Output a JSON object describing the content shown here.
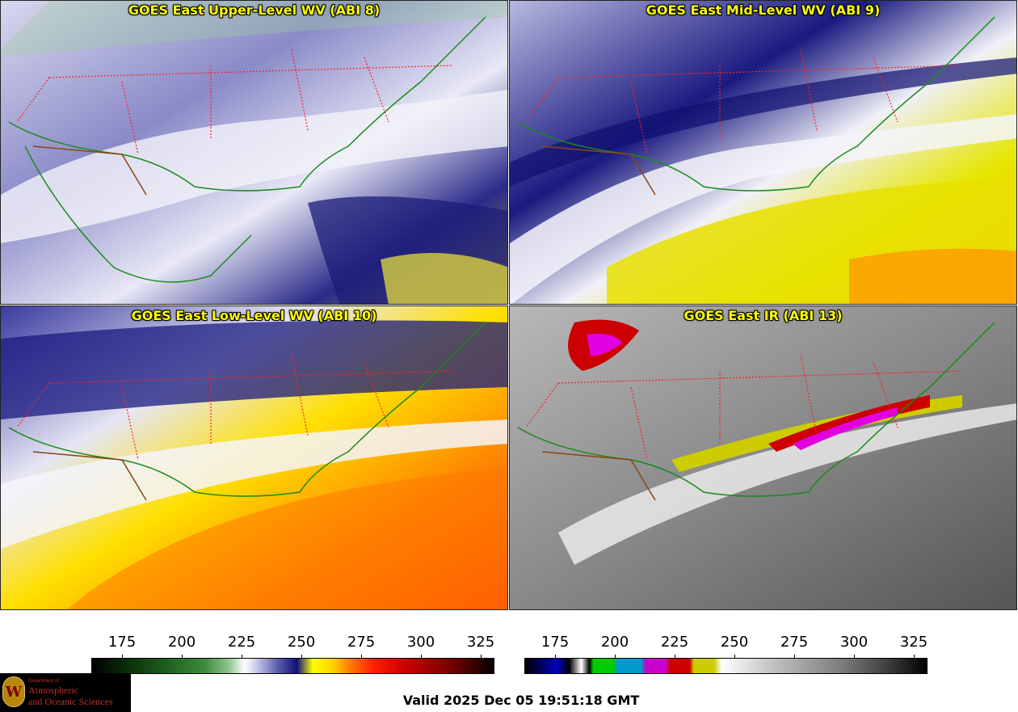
{
  "panels": [
    {
      "title": "GOES East Upper-Level WV (ABI 8)",
      "palette": "wv-upper"
    },
    {
      "title": "GOES East Mid-Level WV (ABI 9)",
      "palette": "wv-mid"
    },
    {
      "title": "GOES East Low-Level WV (ABI 10)",
      "palette": "wv-low"
    },
    {
      "title": "GOES East IR (ABI 13)",
      "palette": "ir"
    }
  ],
  "colorbars": {
    "wv": {
      "ticks": [
        "175",
        "200",
        "225",
        "250",
        "275",
        "300",
        "325"
      ]
    },
    "ir": {
      "ticks": [
        "175",
        "200",
        "225",
        "250",
        "275",
        "300",
        "325"
      ]
    }
  },
  "logo": {
    "dept": "Department of",
    "line1": "Atmospheric",
    "line2": "and Oceanic Sciences",
    "seal": "W"
  },
  "valid_time": "Valid 2025 Dec 05 19:51:18 GMT",
  "colors": {
    "title": "#ffff00",
    "state_borders": "#ff2020",
    "country_borders": "#8b4513",
    "coastlines": "#1a8a1a"
  }
}
